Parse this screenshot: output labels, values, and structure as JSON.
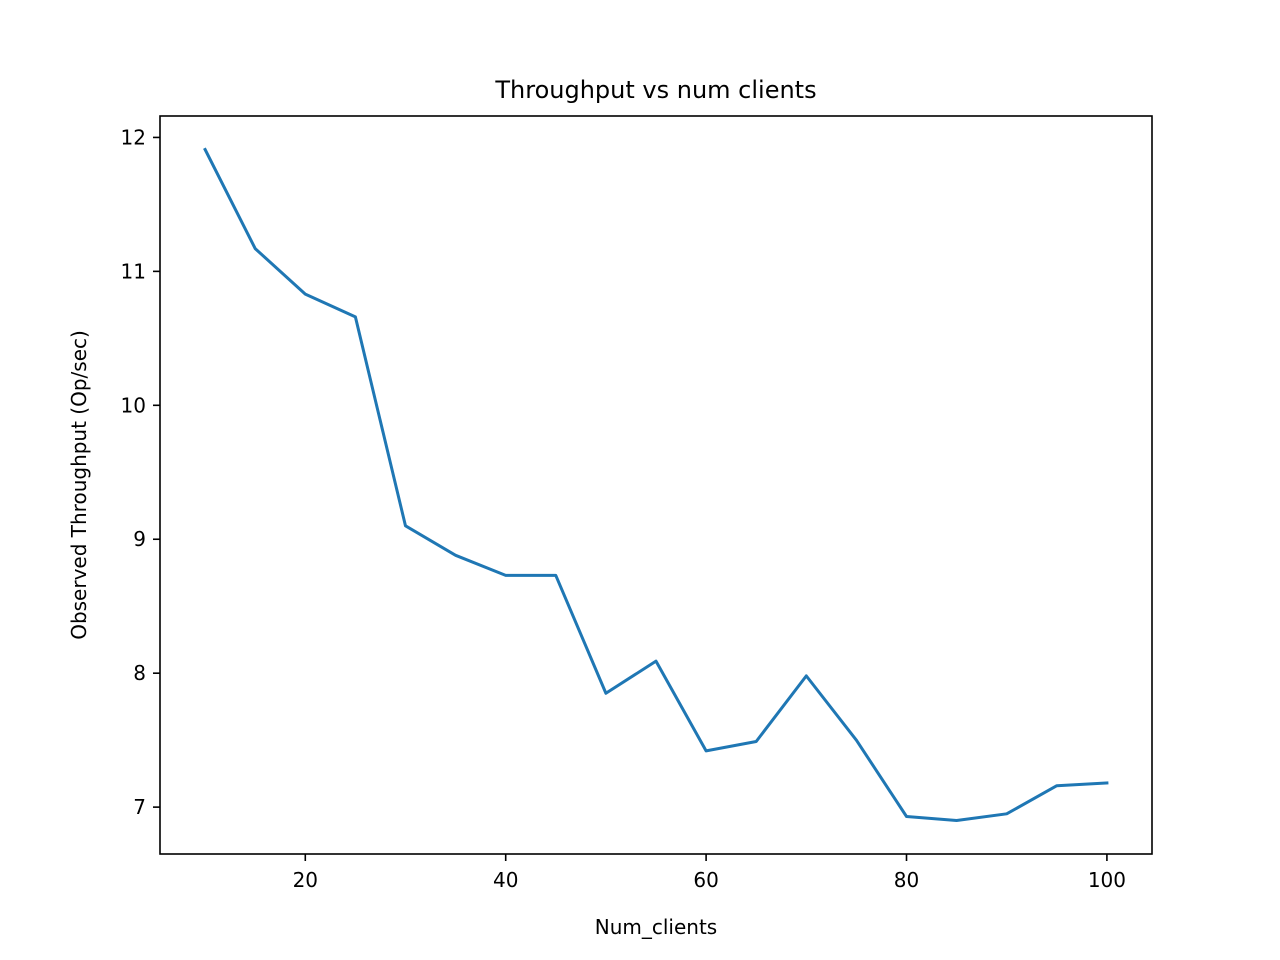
{
  "chart_data": {
    "type": "line",
    "title": "Throughput vs num clients",
    "xlabel": "Num_clients",
    "ylabel": "Observed Throughput (Op/sec)",
    "xlim": [
      5.5,
      104.5
    ],
    "ylim": [
      6.65,
      12.16
    ],
    "x_ticks": [
      20,
      40,
      60,
      80,
      100
    ],
    "y_ticks": [
      7,
      8,
      9,
      10,
      11,
      12
    ],
    "grid": false,
    "series": [
      {
        "color": "#1f77b4",
        "x": [
          10,
          15,
          20,
          25,
          30,
          35,
          40,
          45,
          50,
          55,
          60,
          65,
          70,
          75,
          80,
          85,
          90,
          95,
          100
        ],
        "y": [
          11.91,
          11.17,
          10.83,
          10.66,
          9.1,
          8.88,
          8.73,
          8.73,
          7.85,
          8.09,
          7.42,
          7.49,
          7.98,
          7.5,
          6.93,
          6.9,
          6.95,
          7.16,
          7.18
        ]
      }
    ]
  }
}
